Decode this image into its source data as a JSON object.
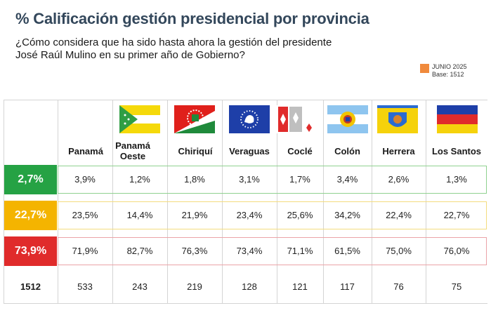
{
  "title": "% Calificación gestión presidencial por provincia",
  "subtitle": {
    "line1": "¿Cómo considera que ha sido hasta ahora la gestión del presidente",
    "line2": "José Raúl Mulino en su primer año de Gobierno?"
  },
  "legend": {
    "label": "JUNIO 2025",
    "base": "Base: 1512",
    "color": "#f08a3c"
  },
  "chart_data": {
    "type": "table",
    "title": "% Calificación gestión presidencial por provincia",
    "columns": [
      "Panamá",
      "Panamá Oeste",
      "Chiriquí",
      "Veraguas",
      "Coclé",
      "Colón",
      "Herrera",
      "Los Santos"
    ],
    "columns_display": [
      [
        "Panamá"
      ],
      [
        "Panamá",
        "Oeste"
      ],
      [
        "Chiriquí"
      ],
      [
        "Veraguas"
      ],
      [
        "Coclé"
      ],
      [
        "Colón"
      ],
      [
        "Herrera"
      ],
      [
        "Los Santos"
      ]
    ],
    "rows": [
      {
        "total": "2,7%",
        "color": "#25a244",
        "border": "#8fd18f",
        "values": [
          "3,9%",
          "1,2%",
          "1,8%",
          "3,1%",
          "1,7%",
          "3,4%",
          "2,6%",
          "1,3%"
        ]
      },
      {
        "total": "22,7%",
        "color": "#f4b400",
        "border": "#f3dc7e",
        "values": [
          "23,5%",
          "14,4%",
          "21,9%",
          "23,4%",
          "25,6%",
          "34,2%",
          "22,4%",
          "22,7%"
        ]
      },
      {
        "total": "73,9%",
        "color": "#e02b2b",
        "border": "#eba3a8",
        "values": [
          "71,9%",
          "82,7%",
          "76,3%",
          "73,4%",
          "71,1%",
          "61,5%",
          "75,0%",
          "76,0%"
        ]
      }
    ],
    "base_row": {
      "total": "1512",
      "values": [
        "533",
        "243",
        "219",
        "128",
        "121",
        "117",
        "76",
        "75"
      ]
    }
  }
}
